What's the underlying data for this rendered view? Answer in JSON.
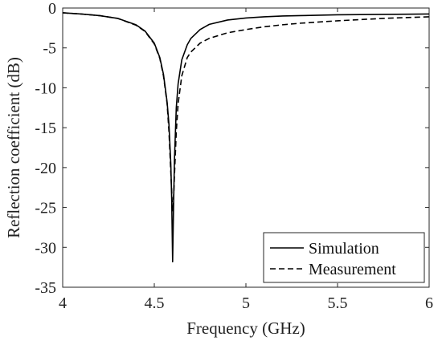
{
  "chart_data": {
    "type": "line",
    "xlabel": "Frequency (GHz)",
    "ylabel": "Reflection coefficient (dB)",
    "xlim": [
      4,
      6
    ],
    "ylim": [
      -35,
      0
    ],
    "xticks": [
      4,
      4.5,
      5,
      5.5,
      6
    ],
    "xtick_labels": [
      "4",
      "4.5",
      "5",
      "5.5",
      "6"
    ],
    "yticks": [
      0,
      -5,
      -10,
      -15,
      -20,
      -25,
      -30,
      -35
    ],
    "ytick_labels": [
      "0",
      "-5",
      "-10",
      "-15",
      "-20",
      "-25",
      "-30",
      "-35"
    ],
    "grid": false,
    "legend_position": "bottom-right",
    "series": [
      {
        "name": "Simulation",
        "line_style": "solid",
        "color": "#000000",
        "x": [
          4.0,
          4.1,
          4.2,
          4.3,
          4.4,
          4.45,
          4.5,
          4.53,
          4.55,
          4.57,
          4.58,
          4.59,
          4.595,
          4.6,
          4.605,
          4.61,
          4.62,
          4.63,
          4.65,
          4.68,
          4.7,
          4.75,
          4.8,
          4.9,
          5.0,
          5.1,
          5.2,
          5.3,
          5.5,
          5.75,
          6.0
        ],
        "y": [
          -0.6,
          -0.75,
          -0.95,
          -1.3,
          -2.1,
          -2.9,
          -4.4,
          -6.2,
          -8.3,
          -11.8,
          -14.6,
          -19.5,
          -24.0,
          -31.8,
          -25.0,
          -19.0,
          -12.5,
          -9.5,
          -6.5,
          -4.6,
          -3.8,
          -2.7,
          -2.05,
          -1.5,
          -1.25,
          -1.1,
          -1.0,
          -0.95,
          -0.85,
          -0.8,
          -0.75
        ]
      },
      {
        "name": "Measurement",
        "line_style": "dashed",
        "color": "#000000",
        "x": [
          4.0,
          4.1,
          4.2,
          4.3,
          4.4,
          4.45,
          4.5,
          4.53,
          4.55,
          4.57,
          4.58,
          4.59,
          4.6,
          4.605,
          4.61,
          4.62,
          4.63,
          4.65,
          4.68,
          4.7,
          4.75,
          4.8,
          4.9,
          5.0,
          5.1,
          5.2,
          5.3,
          5.5,
          5.75,
          6.0
        ],
        "y": [
          -0.6,
          -0.75,
          -0.95,
          -1.3,
          -2.15,
          -2.95,
          -4.5,
          -6.3,
          -8.5,
          -12.0,
          -15.5,
          -20.5,
          -25.5,
          -24.0,
          -21.0,
          -15.5,
          -12.0,
          -8.5,
          -6.2,
          -5.5,
          -4.4,
          -3.8,
          -3.1,
          -2.7,
          -2.35,
          -2.1,
          -1.9,
          -1.6,
          -1.3,
          -1.1
        ]
      }
    ]
  }
}
